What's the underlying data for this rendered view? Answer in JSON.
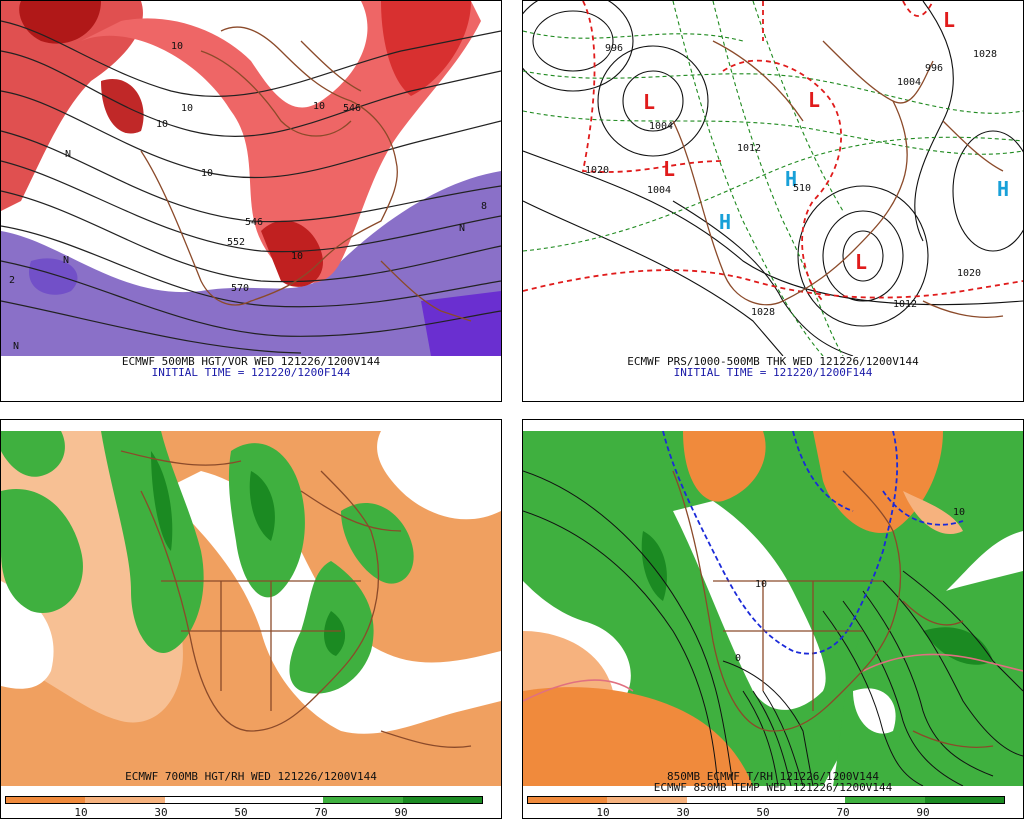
{
  "panels": {
    "p1": {
      "title": "ECMWF 500MB HGT/VOR WED 121226/1200V144",
      "subtitle": "INITIAL TIME = 121220/1200F144",
      "contour_labels": [
        "10",
        "10",
        "10",
        "10",
        "10",
        "10",
        "546",
        "546",
        "552",
        "570",
        "8",
        "N",
        "N",
        "N",
        "2",
        "N"
      ]
    },
    "p2": {
      "title": "ECMWF PRS/1000-500MB THK WED 121226/1200V144",
      "subtitle": "INITIAL TIME = 121220/1200F144",
      "highs": [
        "H",
        "H",
        "H"
      ],
      "lows": [
        "L",
        "L",
        "L",
        "L",
        "L"
      ],
      "isobar_labels": [
        "996",
        "1004",
        "1004",
        "1020",
        "1020",
        "1012",
        "1012",
        "1028",
        "1028",
        "996",
        "1004",
        "510"
      ]
    },
    "p3": {
      "title": "ECMWF 700MB HGT/RH WED 121226/1200V144",
      "legend_ticks": [
        "10",
        "30",
        "50",
        "70",
        "90"
      ],
      "legend_colors": [
        "#f08a3c",
        "#f6b27e",
        "#ffffff",
        "#ffffff",
        "#3fb03f",
        "#1b8a22"
      ]
    },
    "p4": {
      "title1": "850MB ECMWF T/RH 121226/1200V144",
      "title2": "ECMWF 850MB TEMP WED 121226/1200V144",
      "contour_labels": [
        "10",
        "10",
        "0"
      ],
      "legend_ticks": [
        "10",
        "30",
        "50",
        "70",
        "90"
      ],
      "legend_colors": [
        "#f08a3c",
        "#f6b27e",
        "#ffffff",
        "#ffffff",
        "#3fb03f",
        "#1b8a22"
      ]
    }
  }
}
